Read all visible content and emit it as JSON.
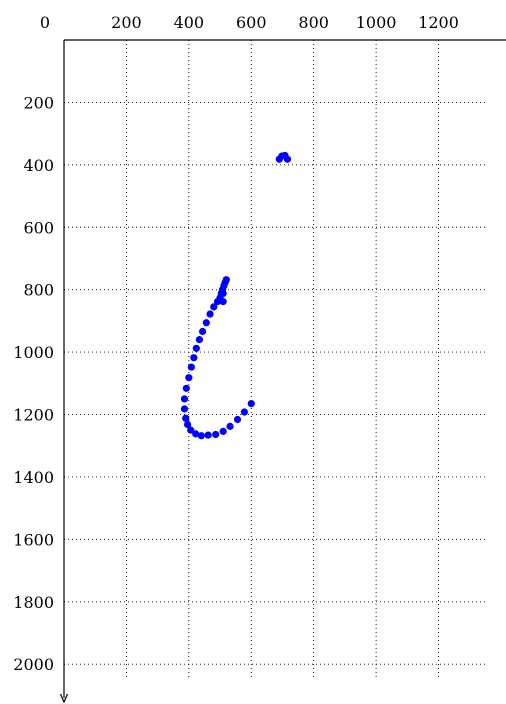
{
  "chart_data": {
    "type": "scatter",
    "title": "",
    "xlabel": "",
    "ylabel": "",
    "x_axis_position": "top",
    "y_axis_direction": "downward",
    "xlim": [
      0,
      1360
    ],
    "ylim": [
      2100,
      0
    ],
    "grid": true,
    "x_ticks": [
      0,
      200,
      400,
      600,
      800,
      1000,
      1200
    ],
    "y_ticks": [
      200,
      400,
      600,
      800,
      1000,
      1200,
      1400,
      1600,
      1800,
      2000
    ],
    "series": [
      {
        "color": "#0000ff",
        "points": [
          [
            690,
            382
          ],
          [
            698,
            372
          ],
          [
            708,
            370
          ],
          [
            716,
            382
          ],
          [
            520,
            768
          ],
          [
            516,
            778
          ],
          [
            512,
            788
          ],
          [
            508,
            800
          ],
          [
            504,
            812
          ],
          [
            510,
            812
          ],
          [
            500,
            826
          ],
          [
            492,
            838
          ],
          [
            510,
            838
          ],
          [
            480,
            855
          ],
          [
            468,
            878
          ],
          [
            456,
            906
          ],
          [
            444,
            934
          ],
          [
            434,
            960
          ],
          [
            424,
            988
          ],
          [
            416,
            1018
          ],
          [
            408,
            1048
          ],
          [
            400,
            1082
          ],
          [
            392,
            1116
          ],
          [
            386,
            1150
          ],
          [
            386,
            1182
          ],
          [
            390,
            1212
          ],
          [
            396,
            1232
          ],
          [
            406,
            1250
          ],
          [
            422,
            1262
          ],
          [
            440,
            1268
          ],
          [
            462,
            1266
          ],
          [
            486,
            1264
          ],
          [
            510,
            1254
          ],
          [
            532,
            1238
          ],
          [
            556,
            1216
          ],
          [
            578,
            1192
          ],
          [
            600,
            1165
          ]
        ]
      }
    ]
  }
}
